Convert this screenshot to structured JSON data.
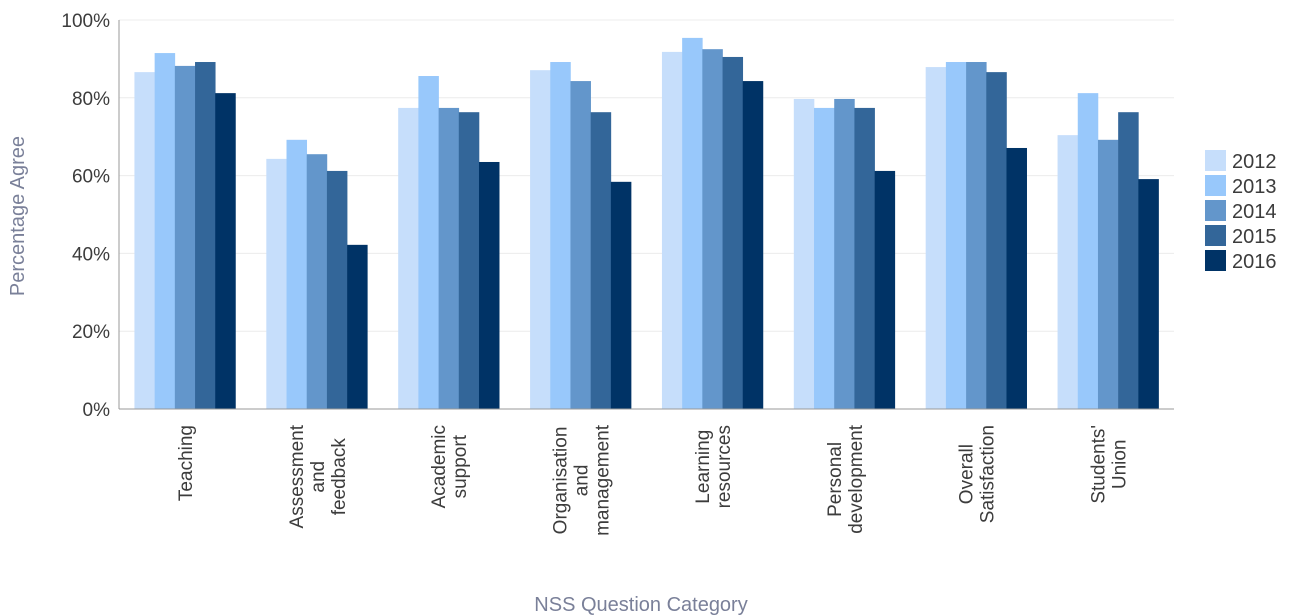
{
  "chart_data": {
    "type": "bar",
    "title": "",
    "xlabel": "NSS Question Category",
    "ylabel": "Percentage Agree",
    "ylim": [
      0,
      100
    ],
    "yticks": [
      "0%",
      "20%",
      "40%",
      "60%",
      "80%",
      "100%"
    ],
    "grid": true,
    "legend_position": "right",
    "categories": [
      "Teaching",
      "Assessment and feedback",
      "Academic support",
      "Organisation and management",
      "Learning resources",
      "Personal development",
      "Overall Satisfaction",
      "Students' Union"
    ],
    "category_label_lines": [
      [
        "Teaching"
      ],
      [
        "Assessment",
        "and",
        "feedback"
      ],
      [
        "Academic",
        "support"
      ],
      [
        "Organisation",
        "and",
        "management"
      ],
      [
        "Learning",
        "resources"
      ],
      [
        "Personal",
        "development"
      ],
      [
        "Overall",
        "Satisfaction"
      ],
      [
        "Students'",
        "Union"
      ]
    ],
    "series": [
      {
        "name": "2012",
        "color": "#c6defb",
        "values": [
          86.6,
          64.3,
          77.4,
          87.1,
          91.8,
          79.7,
          87.9,
          70.4
        ]
      },
      {
        "name": "2013",
        "color": "#98c8fb",
        "values": [
          91.5,
          69.2,
          85.6,
          89.2,
          95.4,
          77.4,
          89.2,
          81.2
        ]
      },
      {
        "name": "2014",
        "color": "#6396cb",
        "values": [
          88.2,
          65.5,
          77.4,
          84.3,
          92.5,
          79.7,
          89.2,
          69.2
        ]
      },
      {
        "name": "2015",
        "color": "#336699",
        "values": [
          89.2,
          61.2,
          76.3,
          76.3,
          90.5,
          77.4,
          86.6,
          76.3
        ]
      },
      {
        "name": "2016",
        "color": "#003366",
        "values": [
          81.2,
          42.2,
          63.5,
          58.4,
          84.3,
          61.2,
          67.1,
          59.1
        ]
      }
    ]
  }
}
